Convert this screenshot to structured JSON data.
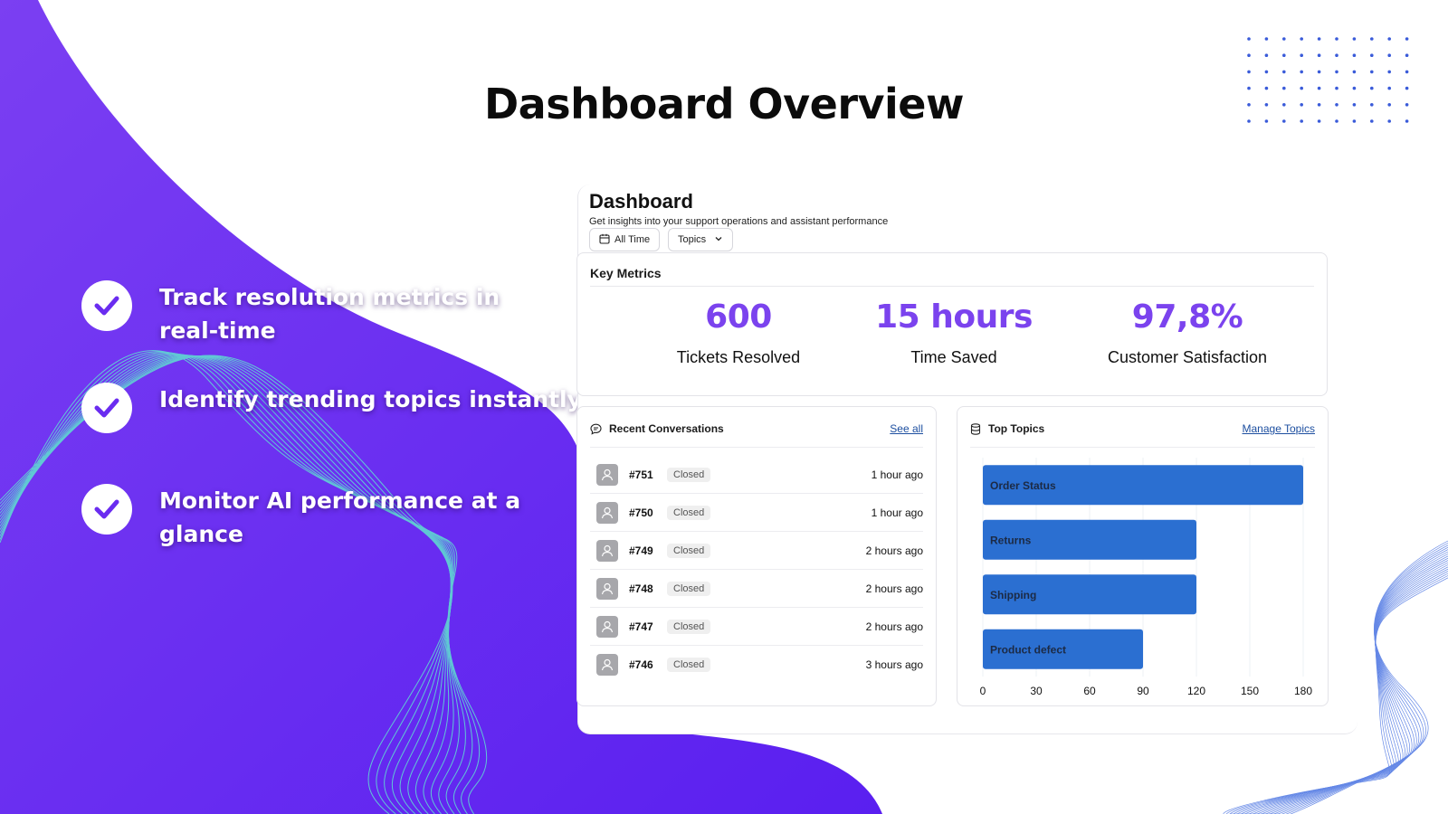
{
  "slide": {
    "title": "Dashboard Overview",
    "features": [
      {
        "text": "Track resolution metrics in real-time"
      },
      {
        "text": "Identify trending topics instantly"
      },
      {
        "text": "Monitor AI performance at a glance"
      }
    ],
    "colors": {
      "purple_start": "#7b3ff2",
      "purple_end": "#5a1ff0",
      "accent_dots": "#3a5bd9"
    }
  },
  "dashboard": {
    "title": "Dashboard",
    "subtitle": "Get insights into your support operations and assistant performance",
    "filters": {
      "time_label": "All Time",
      "topics_label": "Topics"
    },
    "key_metrics": {
      "title": "Key Metrics",
      "items": [
        {
          "value": "600",
          "label": "Tickets Resolved"
        },
        {
          "value": "15 hours",
          "label": "Time Saved"
        },
        {
          "value": "97,8%",
          "label": "Customer Satisfaction"
        }
      ]
    },
    "recent_conversations": {
      "title": "Recent Conversations",
      "see_all": "See all",
      "rows": [
        {
          "id": "#751",
          "status": "Closed",
          "time": "1 hour ago"
        },
        {
          "id": "#750",
          "status": "Closed",
          "time": "1 hour ago"
        },
        {
          "id": "#749",
          "status": "Closed",
          "time": "2 hours ago"
        },
        {
          "id": "#748",
          "status": "Closed",
          "time": "2 hours ago"
        },
        {
          "id": "#747",
          "status": "Closed",
          "time": "2 hours ago"
        },
        {
          "id": "#746",
          "status": "Closed",
          "time": "3 hours ago"
        }
      ]
    },
    "top_topics": {
      "title": "Top Topics",
      "manage": "Manage Topics"
    }
  },
  "chart_data": {
    "type": "bar",
    "orientation": "horizontal",
    "title": "Top Topics",
    "categories": [
      "Order Status",
      "Returns",
      "Shipping",
      "Product defect"
    ],
    "values": [
      180,
      120,
      120,
      90
    ],
    "xlim": [
      0,
      180
    ],
    "xticks": [
      0,
      30,
      60,
      90,
      120,
      150,
      180
    ],
    "grid": true,
    "bar_color": "#2b6fd1"
  }
}
